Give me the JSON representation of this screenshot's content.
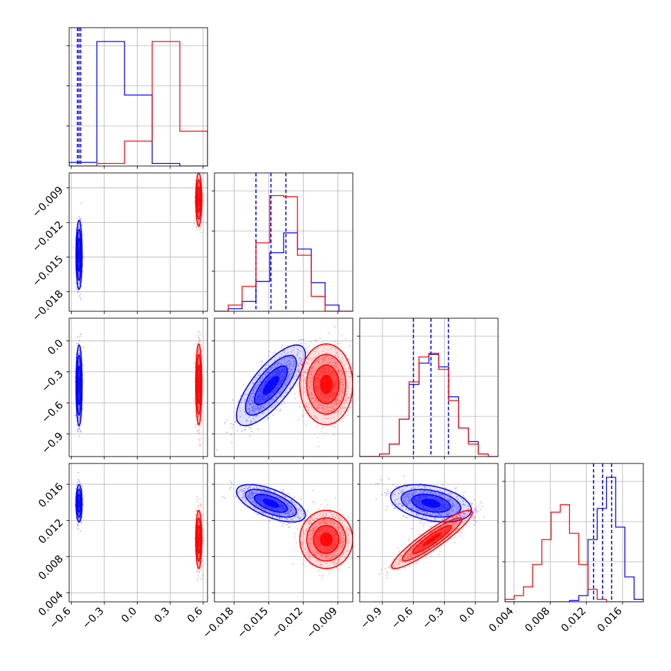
{
  "chart_data": {
    "type": "corner",
    "grid": true,
    "series": [
      {
        "color": "#0000ff",
        "means": [
          -0.53,
          -0.0148,
          -0.43,
          0.0139
        ],
        "sds": [
          0.012,
          0.0013,
          0.17,
          0.0009
        ],
        "corr": [
          [
            1,
            0,
            0,
            0
          ],
          [
            0,
            1,
            0.75,
            -0.62
          ],
          [
            0,
            0.75,
            1,
            -0.35
          ],
          [
            0,
            -0.62,
            -0.35,
            1
          ]
        ],
        "quantiles_1d": [
          [
            -0.545,
            -0.53,
            -0.515
          ],
          [
            -0.0161,
            -0.0148,
            -0.0135
          ],
          [
            -0.6,
            -0.43,
            -0.26
          ],
          [
            0.0128,
            0.0138,
            0.0148
          ]
        ],
        "hist_1d": [
          [
            0.03,
            1.0,
            0.57,
            0.02,
            0.0
          ],
          [
            0.0,
            0.02,
            0.08,
            0.24,
            0.47,
            0.63,
            0.5,
            0.23,
            0.05,
            0.0
          ],
          [
            0.0,
            0.0,
            0.02,
            0.1,
            0.3,
            0.58,
            0.75,
            0.82,
            0.72,
            0.48,
            0.23,
            0.12,
            0.02,
            0.0
          ],
          [
            0.0,
            0.0,
            0.0,
            0.0,
            0.0,
            0.0,
            0.0,
            0.01,
            0.05,
            0.5,
            0.75,
            1.0,
            0.6,
            0.2,
            0.02
          ]
        ]
      },
      {
        "color": "#ff0000",
        "means": [
          0.56,
          -0.01,
          -0.42,
          0.0099
        ],
        "sds": [
          0.012,
          0.001,
          0.17,
          0.0014
        ],
        "corr": [
          [
            1,
            0,
            0,
            0
          ],
          [
            0,
            1,
            0.0,
            0.0
          ],
          [
            0,
            0.0,
            1,
            0.92
          ],
          [
            0,
            0.0,
            0.92,
            1
          ]
        ],
        "quantiles_1d": [],
        "hist_1d": [
          [
            0.0,
            0.02,
            0.2,
            1.0,
            0.28
          ],
          [
            0.0,
            0.05,
            0.2,
            0.55,
            0.93,
            0.92,
            0.45,
            0.12,
            0.0,
            0.0
          ],
          [
            0.0,
            0.0,
            0.02,
            0.1,
            0.3,
            0.6,
            0.8,
            0.83,
            0.7,
            0.45,
            0.23,
            0.1,
            0.02,
            0.0
          ],
          [
            0.02,
            0.05,
            0.12,
            0.3,
            0.5,
            0.72,
            0.78,
            0.55,
            0.3,
            0.1,
            0.02,
            0.0,
            0.0,
            0.0,
            0.0
          ]
        ]
      }
    ],
    "params": [
      {
        "range": [
          -0.62,
          0.64
        ],
        "ticks": [
          -0.6,
          -0.3,
          0.0,
          0.3,
          0.6
        ],
        "tick_labels": [
          "−0.6",
          "−0.3",
          "0.0",
          "0.3",
          "0.6"
        ]
      },
      {
        "range": [
          -0.0197,
          -0.0077
        ],
        "ticks": [
          -0.018,
          -0.015,
          -0.012,
          -0.009
        ],
        "tick_labels": [
          "−0.018",
          "−0.015",
          "−0.012",
          "−0.009"
        ]
      },
      {
        "range": [
          -1.12,
          0.22
        ],
        "ticks": [
          -0.9,
          -0.6,
          -0.3,
          0.0
        ],
        "tick_labels": [
          "−0.9",
          "−0.6",
          "−0.3",
          "0.0"
        ]
      },
      {
        "range": [
          0.003,
          0.0183
        ],
        "ticks": [
          0.004,
          0.008,
          0.012,
          0.016
        ],
        "tick_labels": [
          "0.004",
          "0.008",
          "0.012",
          "0.016"
        ]
      }
    ]
  }
}
